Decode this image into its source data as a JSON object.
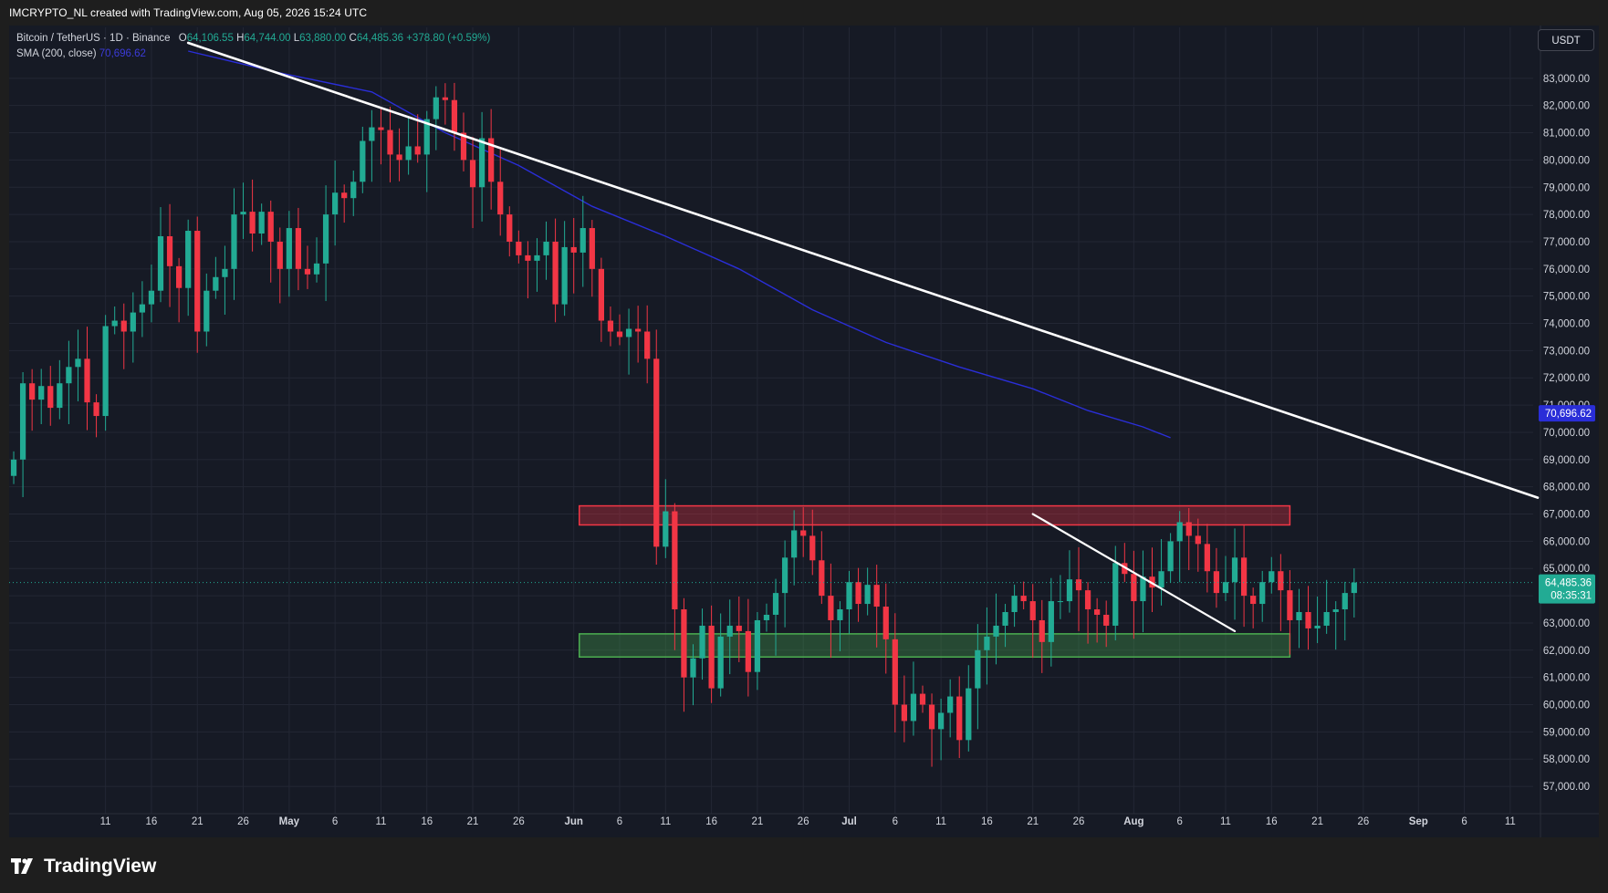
{
  "header": {
    "title": "IMCRYPTO_NL created with TradingView.com, Aug 05, 2026 15:24 UTC"
  },
  "legend": {
    "symbol": "Bitcoin / TetherUS · 1D · Binance",
    "o_label": "O",
    "o_value": "64,106.55",
    "h_label": "H",
    "h_value": "64,744.00",
    "l_label": "L",
    "l_value": "63,880.00",
    "c_label": "C",
    "c_value": "64,485.36",
    "change": "+378.80 (+0.59%)",
    "sma_label": "SMA (200, close)",
    "sma_value": "70,696.62"
  },
  "currency_button": "USDT",
  "price_labels": {
    "sma": "70,696.62",
    "last": "64,485.36",
    "countdown": "08:35:31"
  },
  "brand": {
    "logo_text": "TradingView"
  },
  "colors": {
    "background": "#161a25",
    "up": "#22ab94",
    "down": "#f23645",
    "sma": "#2a2ed8",
    "trendline": "#ffffff",
    "resistance_zone": "#f23645",
    "support_zone": "#4caf50"
  },
  "chart_data": {
    "type": "candlestick",
    "symbol": "BTC/USDT",
    "interval": "1D",
    "y_ticks": [
      57000,
      58000,
      59000,
      60000,
      61000,
      62000,
      63000,
      64000,
      65000,
      66000,
      67000,
      68000,
      69000,
      70000,
      71000,
      72000,
      73000,
      74000,
      75000,
      76000,
      77000,
      78000,
      79000,
      80000,
      81000,
      82000,
      83000
    ],
    "y_tick_labels": [
      "57,000.00",
      "58,000.00",
      "59,000.00",
      "60,000.00",
      "61,000.00",
      "62,000.00",
      "63,000.00",
      "64,000.00",
      "65,000.00",
      "66,000.00",
      "67,000.00",
      "68,000.00",
      "69,000.00",
      "70,000.00",
      "71,000.00",
      "72,000.00",
      "73,000.00",
      "74,000.00",
      "75,000.00",
      "76,000.00",
      "77,000.00",
      "78,000.00",
      "79,000.00",
      "80,000.00",
      "81,000.00",
      "82,000.00",
      "83,000.00"
    ],
    "x_ticks": [
      {
        "day": 11,
        "label": "11"
      },
      {
        "day": 16,
        "label": "16"
      },
      {
        "day": 21,
        "label": "21"
      },
      {
        "day": 26,
        "label": "26"
      },
      {
        "day": 31,
        "label": "May"
      },
      {
        "day": 36,
        "label": "6"
      },
      {
        "day": 41,
        "label": "11"
      },
      {
        "day": 46,
        "label": "16"
      },
      {
        "day": 51,
        "label": "21"
      },
      {
        "day": 56,
        "label": "26"
      },
      {
        "day": 62,
        "label": "Jun"
      },
      {
        "day": 67,
        "label": "6"
      },
      {
        "day": 72,
        "label": "11"
      },
      {
        "day": 77,
        "label": "16"
      },
      {
        "day": 82,
        "label": "21"
      },
      {
        "day": 87,
        "label": "26"
      },
      {
        "day": 92,
        "label": "Jul"
      },
      {
        "day": 97,
        "label": "6"
      },
      {
        "day": 102,
        "label": "11"
      },
      {
        "day": 107,
        "label": "16"
      },
      {
        "day": 112,
        "label": "21"
      },
      {
        "day": 117,
        "label": "26"
      },
      {
        "day": 123,
        "label": "Aug"
      },
      {
        "day": 128,
        "label": "6"
      },
      {
        "day": 133,
        "label": "11"
      },
      {
        "day": 138,
        "label": "16"
      },
      {
        "day": 143,
        "label": "21"
      },
      {
        "day": 148,
        "label": "26"
      },
      {
        "day": 154,
        "label": "Sep"
      },
      {
        "day": 159,
        "label": "6"
      },
      {
        "day": 164,
        "label": "11"
      }
    ],
    "candles_close": [
      69000,
      71800,
      71200,
      71700,
      70900,
      71800,
      72400,
      72700,
      71100,
      70600,
      73900,
      74100,
      73700,
      74400,
      74700,
      75200,
      77200,
      76100,
      75300,
      77400,
      73700,
      75200,
      75700,
      76000,
      78000,
      78100,
      77300,
      78100,
      77000,
      76000,
      77500,
      76000,
      75800,
      76200,
      78000,
      78800,
      78600,
      79200,
      80700,
      81200,
      81100,
      80200,
      80000,
      80500,
      80200,
      81500,
      82300,
      82200,
      81000,
      80000,
      79000,
      80800,
      79200,
      78000,
      77000,
      76500,
      76300,
      76500,
      77000,
      74700,
      76800,
      76600,
      77500,
      76000,
      74100,
      73700,
      73500,
      73800,
      73700,
      72700,
      65800,
      67100,
      63500,
      61000,
      61700,
      62900,
      60600,
      62500,
      62900,
      62700,
      61200,
      63100,
      63300,
      64100,
      65400,
      66400,
      66200,
      65300,
      64000,
      63100,
      63500,
      64500,
      63700,
      64400,
      63600,
      62400,
      60000,
      59400,
      60400,
      60000,
      59100,
      59700,
      60300,
      58700,
      60600,
      62000,
      62500,
      62900,
      63400,
      64000,
      63800,
      63100,
      62300,
      63800,
      63800,
      64600,
      64200,
      63500,
      63300,
      62900,
      65200,
      64800,
      63800,
      64700,
      64300,
      64900,
      66000,
      66700,
      66200,
      65900,
      64900,
      64100,
      64500,
      65400,
      64000,
      63700,
      64500,
      64900,
      64200,
      63100,
      63400,
      62800,
      62900,
      63400,
      63500,
      64100,
      64485.36
    ],
    "last_price": 64485.36,
    "sma200_last": 70696.62,
    "zones": [
      {
        "name": "resistance",
        "from_day": 63,
        "to_day": 140,
        "low": 66600,
        "high": 67300
      },
      {
        "name": "support",
        "from_day": 63,
        "to_day": 140,
        "low": 61750,
        "high": 62600
      }
    ],
    "trendlines": [
      {
        "start_day": 20,
        "start_price": 84300,
        "end_day": 167,
        "end_price": 67600
      },
      {
        "start_day": 112,
        "start_price": 67000,
        "end_day": 134,
        "end_price": 62700
      }
    ],
    "sma_points": [
      [
        20,
        84000
      ],
      [
        30,
        83200
      ],
      [
        40,
        82500
      ],
      [
        48,
        81000
      ],
      [
        56,
        79800
      ],
      [
        64,
        78300
      ],
      [
        72,
        77200
      ],
      [
        80,
        76000
      ],
      [
        88,
        74500
      ],
      [
        96,
        73300
      ],
      [
        104,
        72400
      ],
      [
        112,
        71600
      ],
      [
        118,
        70800
      ],
      [
        124,
        70200
      ],
      [
        127,
        69800
      ]
    ],
    "ylim": [
      56400,
      84200
    ],
    "xlim": [
      0.5,
      166.5
    ]
  }
}
